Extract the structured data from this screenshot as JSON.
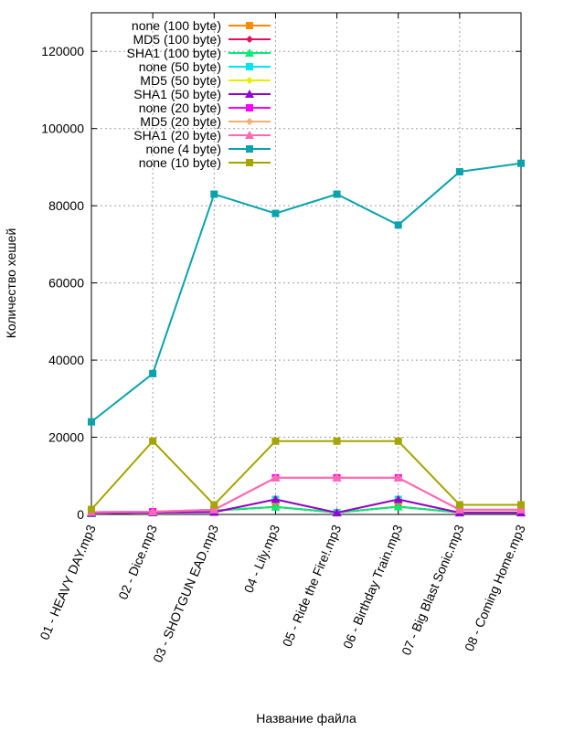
{
  "chart_data": {
    "type": "line",
    "title": "",
    "xlabel": "Название файла",
    "ylabel": "Количество хешей",
    "ylim": [
      0,
      130000
    ],
    "yticks": [
      0,
      20000,
      40000,
      60000,
      80000,
      100000,
      120000
    ],
    "grid": true,
    "legend_position": "top-left inside",
    "categories": [
      "01 - HEAVY DAY.mp3",
      "02 - Dice.mp3",
      "03 - SHOTGUN EAD.mp3",
      "04 - Lily.mp3",
      "05 - Ride the Fire!.mp3",
      "06 - Birthday Train.mp3",
      "07 - Big Blast Sonic.mp3",
      "08 - Coming Home.mp3"
    ],
    "series": [
      {
        "name": "none (100 byte)",
        "color": "#ff8c00",
        "marker": "square",
        "values": [
          250,
          560,
          1000,
          1950,
          500,
          2000,
          500,
          500
        ]
      },
      {
        "name": "MD5 (100 byte)",
        "color": "#e0115f",
        "marker": "diamond",
        "values": [
          250,
          560,
          1000,
          1950,
          500,
          2000,
          500,
          500
        ]
      },
      {
        "name": "SHA1 (100 byte)",
        "color": "#00ee76",
        "marker": "triangle",
        "values": [
          250,
          560,
          1000,
          1950,
          500,
          2000,
          500,
          500
        ]
      },
      {
        "name": "none (50 byte)",
        "color": "#00e5ee",
        "marker": "square",
        "values": [
          350,
          500,
          600,
          3900,
          450,
          3900,
          450,
          450
        ]
      },
      {
        "name": "MD5 (50 byte)",
        "color": "#e5ee00",
        "marker": "diamond",
        "values": [
          350,
          500,
          600,
          3900,
          450,
          3900,
          450,
          450
        ]
      },
      {
        "name": "SHA1 (50 byte)",
        "color": "#9400d3",
        "marker": "triangle",
        "values": [
          350,
          500,
          600,
          3900,
          450,
          3900,
          450,
          450
        ]
      },
      {
        "name": "none (20 byte)",
        "color": "#ff00ff",
        "marker": "square",
        "values": [
          600,
          700,
          1200,
          9500,
          9500,
          9500,
          1200,
          1200
        ]
      },
      {
        "name": "MD5 (20 byte)",
        "color": "#f5b070",
        "marker": "diamond",
        "values": [
          600,
          700,
          1200,
          9500,
          9500,
          9500,
          1200,
          1200
        ]
      },
      {
        "name": "SHA1 (20 byte)",
        "color": "#ff69b4",
        "marker": "triangle",
        "values": [
          600,
          700,
          1200,
          9500,
          9500,
          9500,
          1200,
          1200
        ]
      },
      {
        "name": "none (4 byte)",
        "color": "#0aa3ac",
        "marker": "square",
        "values": [
          24000,
          36500,
          83000,
          78000,
          83000,
          75000,
          88800,
          91000
        ]
      },
      {
        "name": "none (10 byte)",
        "color": "#a5a500",
        "marker": "square",
        "values": [
          1300,
          19000,
          2500,
          19000,
          19000,
          19000,
          2500,
          2500
        ]
      }
    ]
  }
}
